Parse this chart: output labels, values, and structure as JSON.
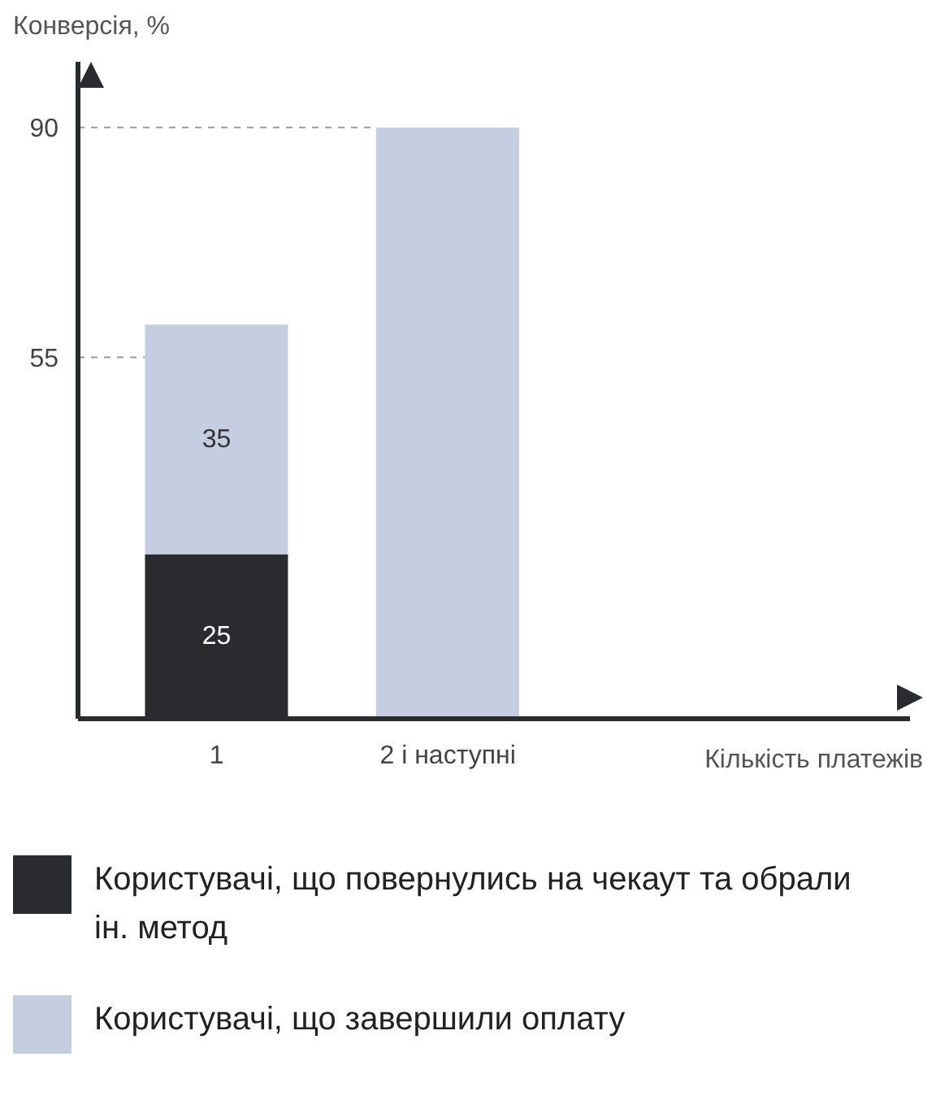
{
  "chart_data": {
    "type": "bar",
    "stacked": true,
    "ylabel": "Конверсія, %",
    "annotations": [
      "Кількість платежів"
    ],
    "categories": [
      "1",
      "2 і наступні"
    ],
    "series": [
      {
        "name": "Користувачі, що повернулись на чекаут та обрали ін. метод",
        "color": "#2a2b2f",
        "values": [
          25,
          null
        ],
        "value_labels": [
          "25",
          null
        ]
      },
      {
        "name": "Користувачі, що завершили оплату",
        "color": "#c5cde0",
        "values": [
          35,
          90
        ],
        "value_labels": [
          "35",
          null
        ]
      }
    ],
    "ylim": [
      0,
      100
    ],
    "yticks": [
      55,
      90
    ],
    "grid": false,
    "legend": "bottom",
    "ref_lines": [
      {
        "axis": "y",
        "value": 55,
        "color": "#999999",
        "line_style": "dashed"
      },
      {
        "axis": "y",
        "value": 90,
        "color": "#999999",
        "line_style": "dashed"
      }
    ]
  }
}
